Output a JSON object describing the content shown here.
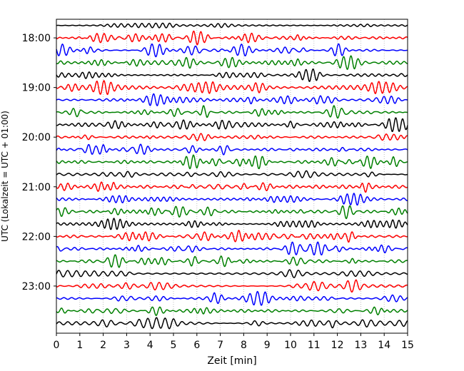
{
  "chart_data": {
    "type": "line",
    "title": "",
    "xlabel": "Zeit  [min]",
    "ylabel": "UTC (Lokalzeit = UTC + 01:00)",
    "xlim": [
      0,
      15
    ],
    "x_ticks": [
      0,
      1,
      2,
      3,
      4,
      5,
      6,
      7,
      8,
      9,
      10,
      11,
      12,
      13,
      14,
      15
    ],
    "y_ticks": [
      "18:00",
      "19:00",
      "20:00",
      "21:00",
      "22:00",
      "23:00"
    ],
    "trace_start": "17:45",
    "trace_end": "23:45",
    "trace_interval_minutes": 15,
    "trace_colors": [
      "#000000",
      "#ff0000",
      "#0000ff",
      "#008000"
    ],
    "grid": true,
    "legend": "none"
  }
}
